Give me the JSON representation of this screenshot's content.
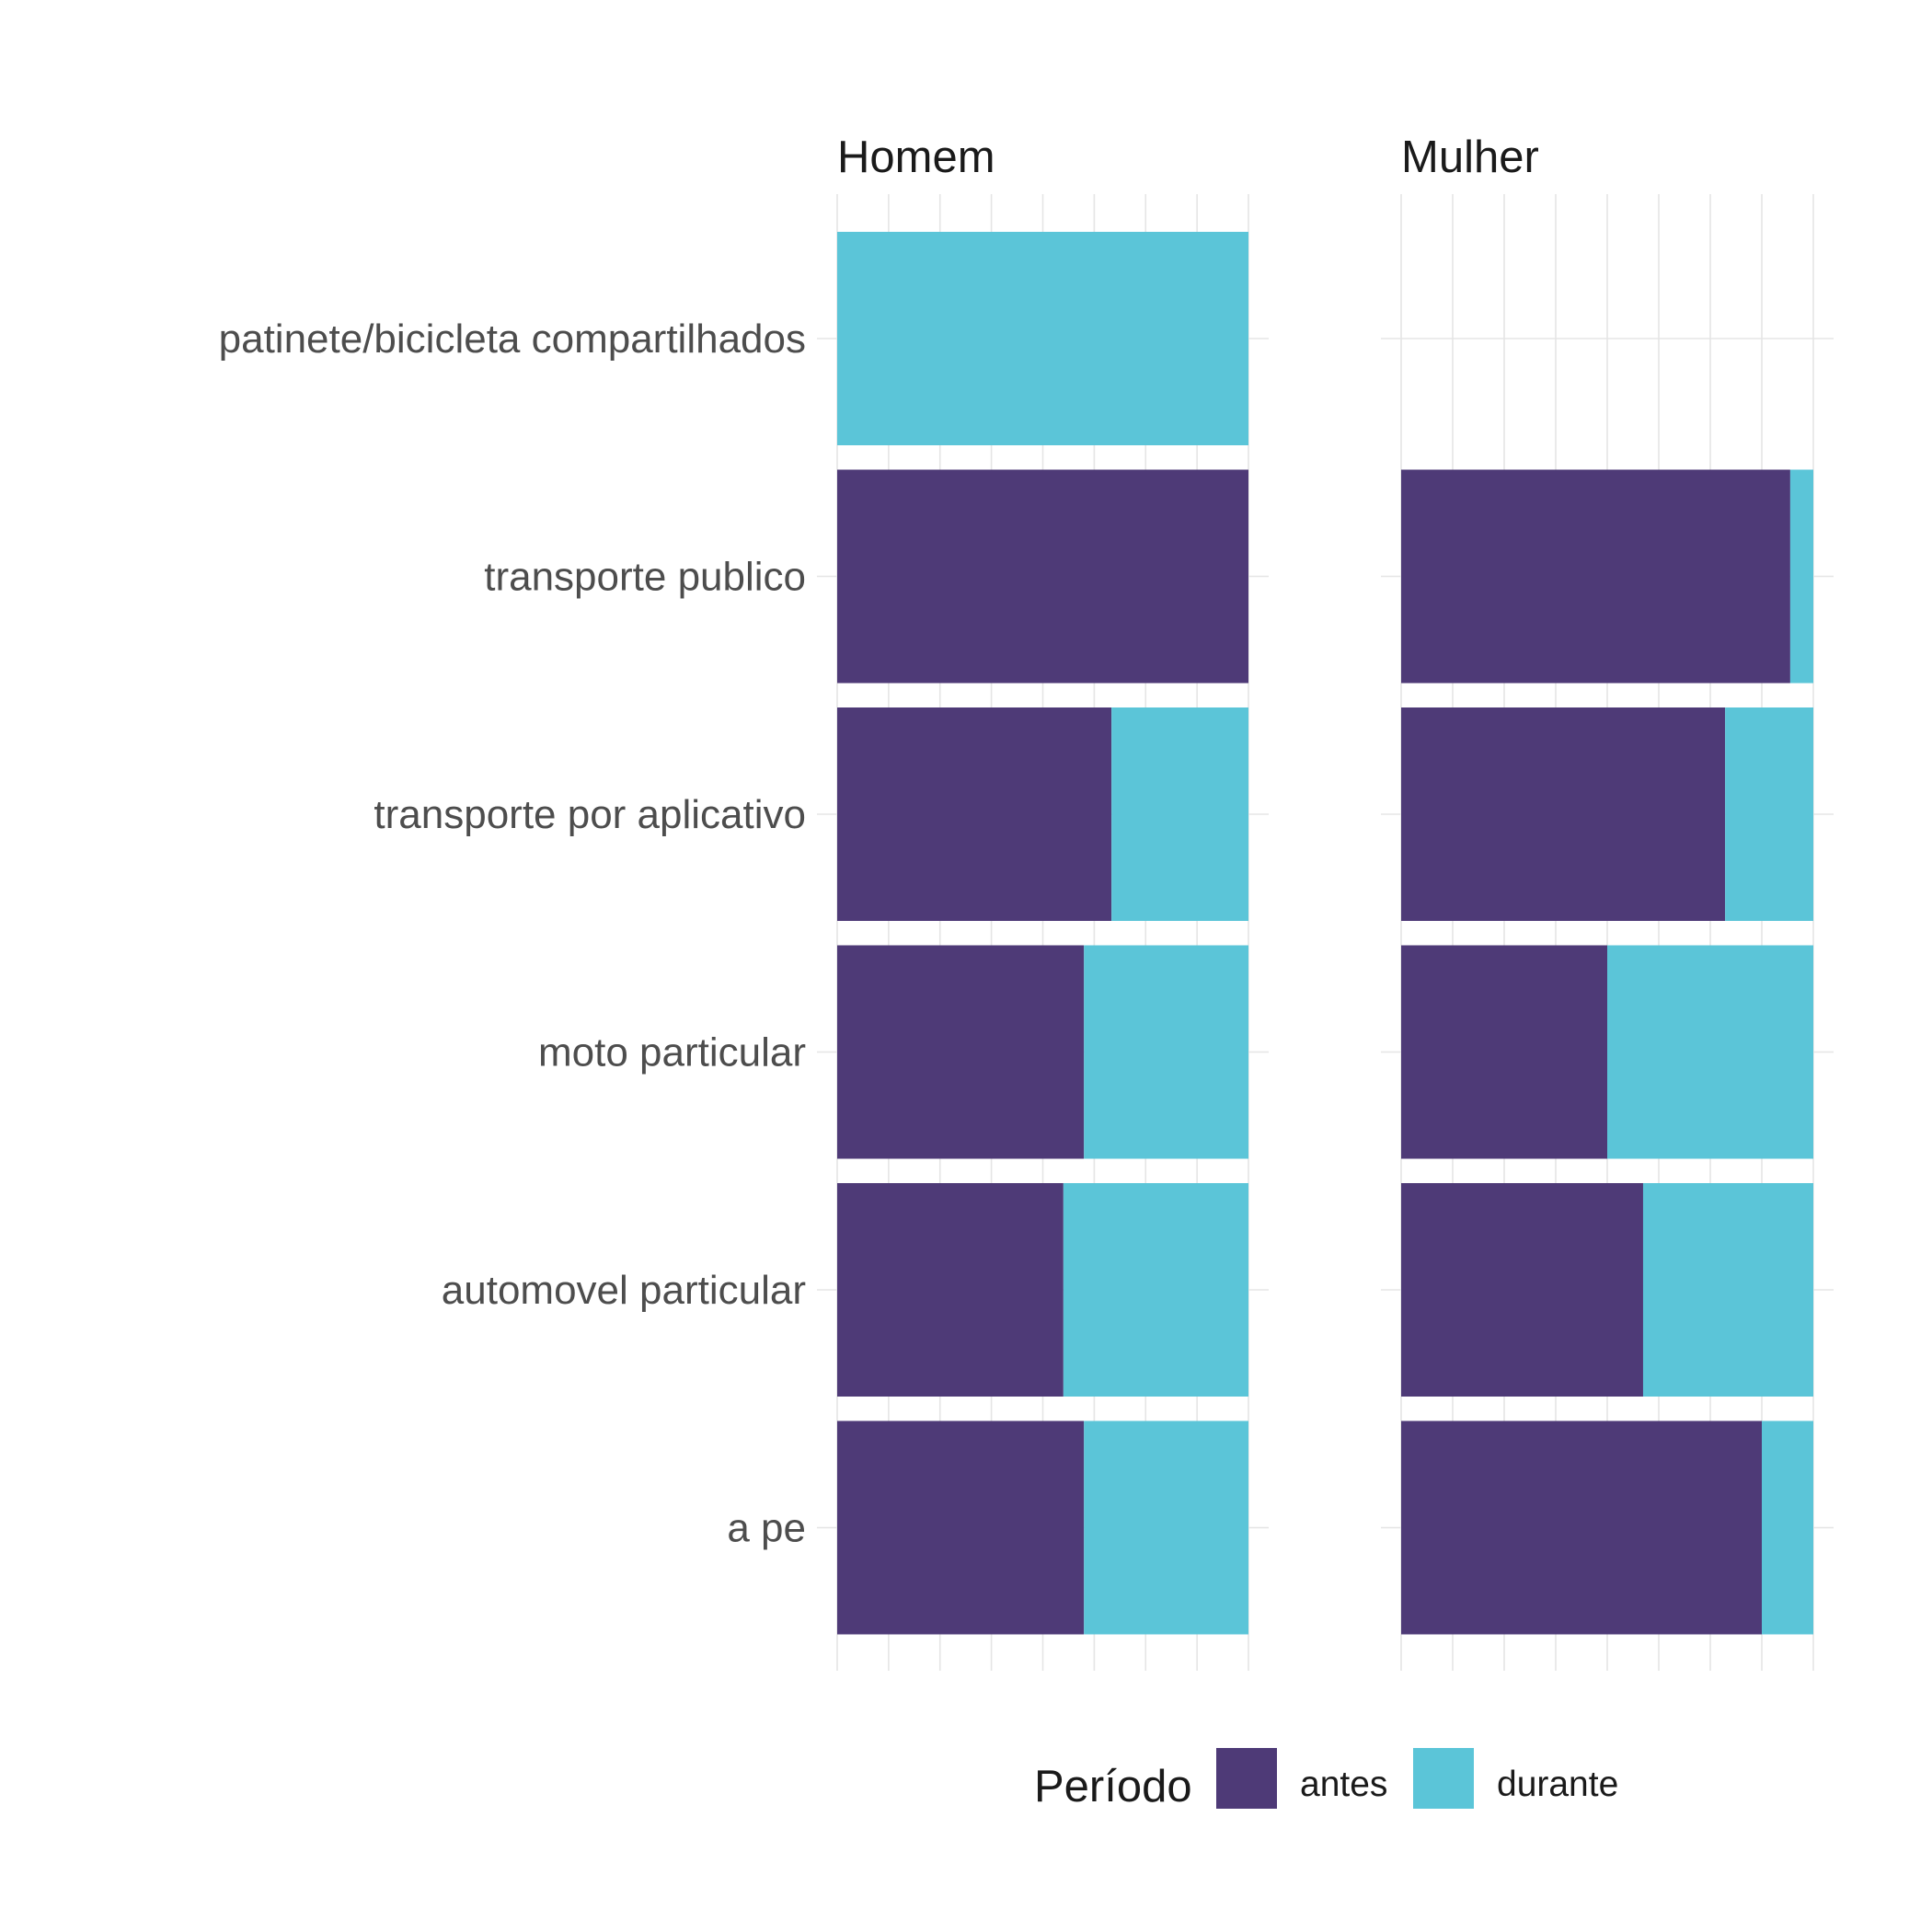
{
  "chart_data": {
    "type": "bar",
    "orientation": "horizontal",
    "stacked": "proportion",
    "panels": [
      "Homem",
      "Mulher"
    ],
    "categories": [
      "patinete/bicicleta compartilhados",
      "transporte publico",
      "transporte por aplicativo",
      "moto particular",
      "automovel particular",
      "a pe"
    ],
    "series": [
      {
        "name": "antes",
        "color": "#4e3a77",
        "values": {
          "Homem": [
            0,
            1.0,
            0.667,
            0.6,
            0.55,
            0.6
          ],
          "Mulher": [
            null,
            0.944,
            0.786,
            0.5,
            0.587,
            0.875
          ]
        }
      },
      {
        "name": "durante",
        "color": "#5bc5d8",
        "values": {
          "Homem": [
            1.0,
            0.0,
            0.333,
            0.4,
            0.45,
            0.4
          ],
          "Mulher": [
            null,
            0.056,
            0.214,
            0.5,
            0.413,
            0.125
          ]
        }
      }
    ],
    "xlim": [
      0,
      1
    ],
    "x_tick_labels_shown": false,
    "grid": true,
    "legend": {
      "title": "Período",
      "position": "bottom",
      "entries": [
        "antes",
        "durante"
      ]
    }
  }
}
